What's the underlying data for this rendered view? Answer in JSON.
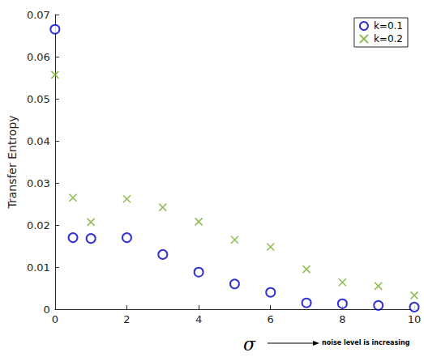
{
  "chart_data": {
    "type": "scatter",
    "x_label": "σ",
    "y_label": "Transfer Entropy",
    "annotation": "noise level is increasing",
    "x": [
      0,
      0.5,
      1,
      2,
      3,
      4,
      5,
      6,
      7,
      8,
      9,
      10
    ],
    "series": [
      {
        "name": "k=0.1",
        "color": "#0000cc",
        "marker": "circle",
        "values": [
          0.0665,
          0.017,
          0.0168,
          0.017,
          0.013,
          0.0088,
          0.006,
          0.004,
          0.0015,
          0.0013,
          0.0009,
          0.0005
        ]
      },
      {
        "name": "k=0.2",
        "color": "#77ac30",
        "marker": "x",
        "values": [
          0.0557,
          0.0265,
          0.0207,
          0.0262,
          0.0242,
          0.0208,
          0.0165,
          0.0148,
          0.0095,
          0.0064,
          0.0055,
          0.0033
        ]
      }
    ],
    "xlim": [
      0,
      10
    ],
    "xticks": [
      0,
      2,
      4,
      6,
      8,
      10
    ],
    "ylim": [
      0,
      0.07
    ],
    "yticks": [
      0,
      0.01,
      0.02,
      0.03,
      0.04,
      0.05,
      0.06,
      0.07
    ],
    "grid": false,
    "legend": "upper right"
  }
}
